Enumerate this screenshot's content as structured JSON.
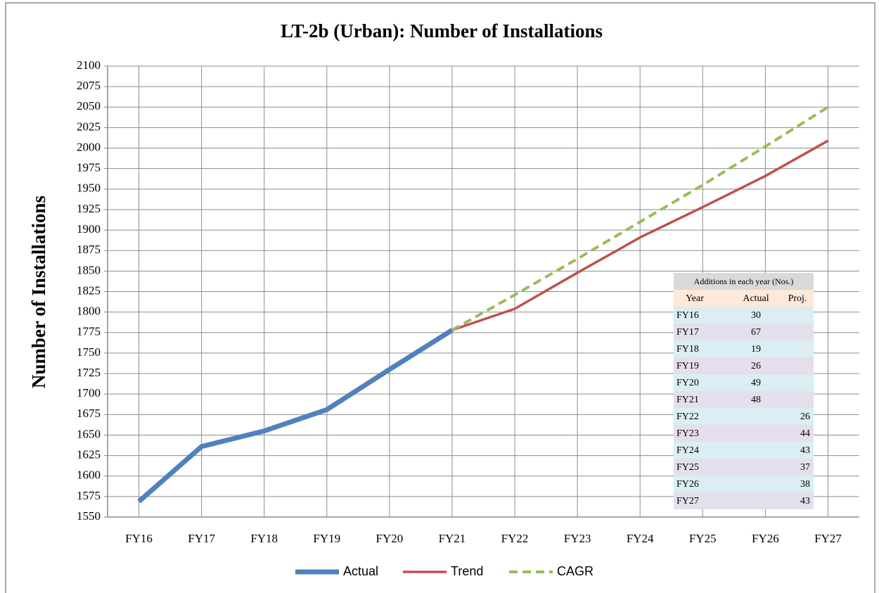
{
  "chart_data": {
    "type": "line",
    "title": "LT-2b (Urban): Number of Installations",
    "y_label": "Number of Installations",
    "categories": [
      "FY16",
      "FY17",
      "FY18",
      "FY19",
      "FY20",
      "FY21",
      "FY22",
      "FY23",
      "FY24",
      "FY25",
      "FY26",
      "FY27"
    ],
    "series": [
      {
        "name": "Actual",
        "color": "#4f81bd",
        "values": [
          1569,
          1636,
          1655,
          1681,
          1730,
          1778,
          null,
          null,
          null,
          null,
          null,
          null
        ]
      },
      {
        "name": "Trend",
        "color": "#c0504d",
        "values": [
          null,
          null,
          null,
          null,
          null,
          1778,
          1804,
          1848,
          1891,
          1928,
          1966,
          2009
        ]
      },
      {
        "name": "CAGR",
        "color": "#9bbb59",
        "dashed": true,
        "values": [
          null,
          null,
          null,
          null,
          null,
          1778,
          1821,
          1865,
          1910,
          1955,
          2002,
          2050
        ]
      }
    ],
    "ylim": [
      1550,
      2100
    ],
    "yticks": [
      1550,
      1575,
      1600,
      1625,
      1650,
      1675,
      1700,
      1725,
      1750,
      1775,
      1800,
      1825,
      1850,
      1875,
      1900,
      1925,
      1950,
      1975,
      2000,
      2025,
      2050,
      2075,
      2100
    ],
    "grid": true,
    "legend": "bottom",
    "table": {
      "title": "Additions in each year (Nos.)",
      "header": [
        "Year",
        "Actual",
        "Proj."
      ],
      "rows": [
        [
          "FY16",
          30,
          null
        ],
        [
          "FY17",
          67,
          null
        ],
        [
          "FY18",
          19,
          null
        ],
        [
          "FY19",
          26,
          null
        ],
        [
          "FY20",
          49,
          null
        ],
        [
          "FY21",
          48,
          null
        ],
        [
          "FY22",
          null,
          26
        ],
        [
          "FY23",
          null,
          44
        ],
        [
          "FY24",
          null,
          43
        ],
        [
          "FY25",
          null,
          37
        ],
        [
          "FY26",
          null,
          38
        ],
        [
          "FY27",
          null,
          43
        ]
      ]
    }
  }
}
